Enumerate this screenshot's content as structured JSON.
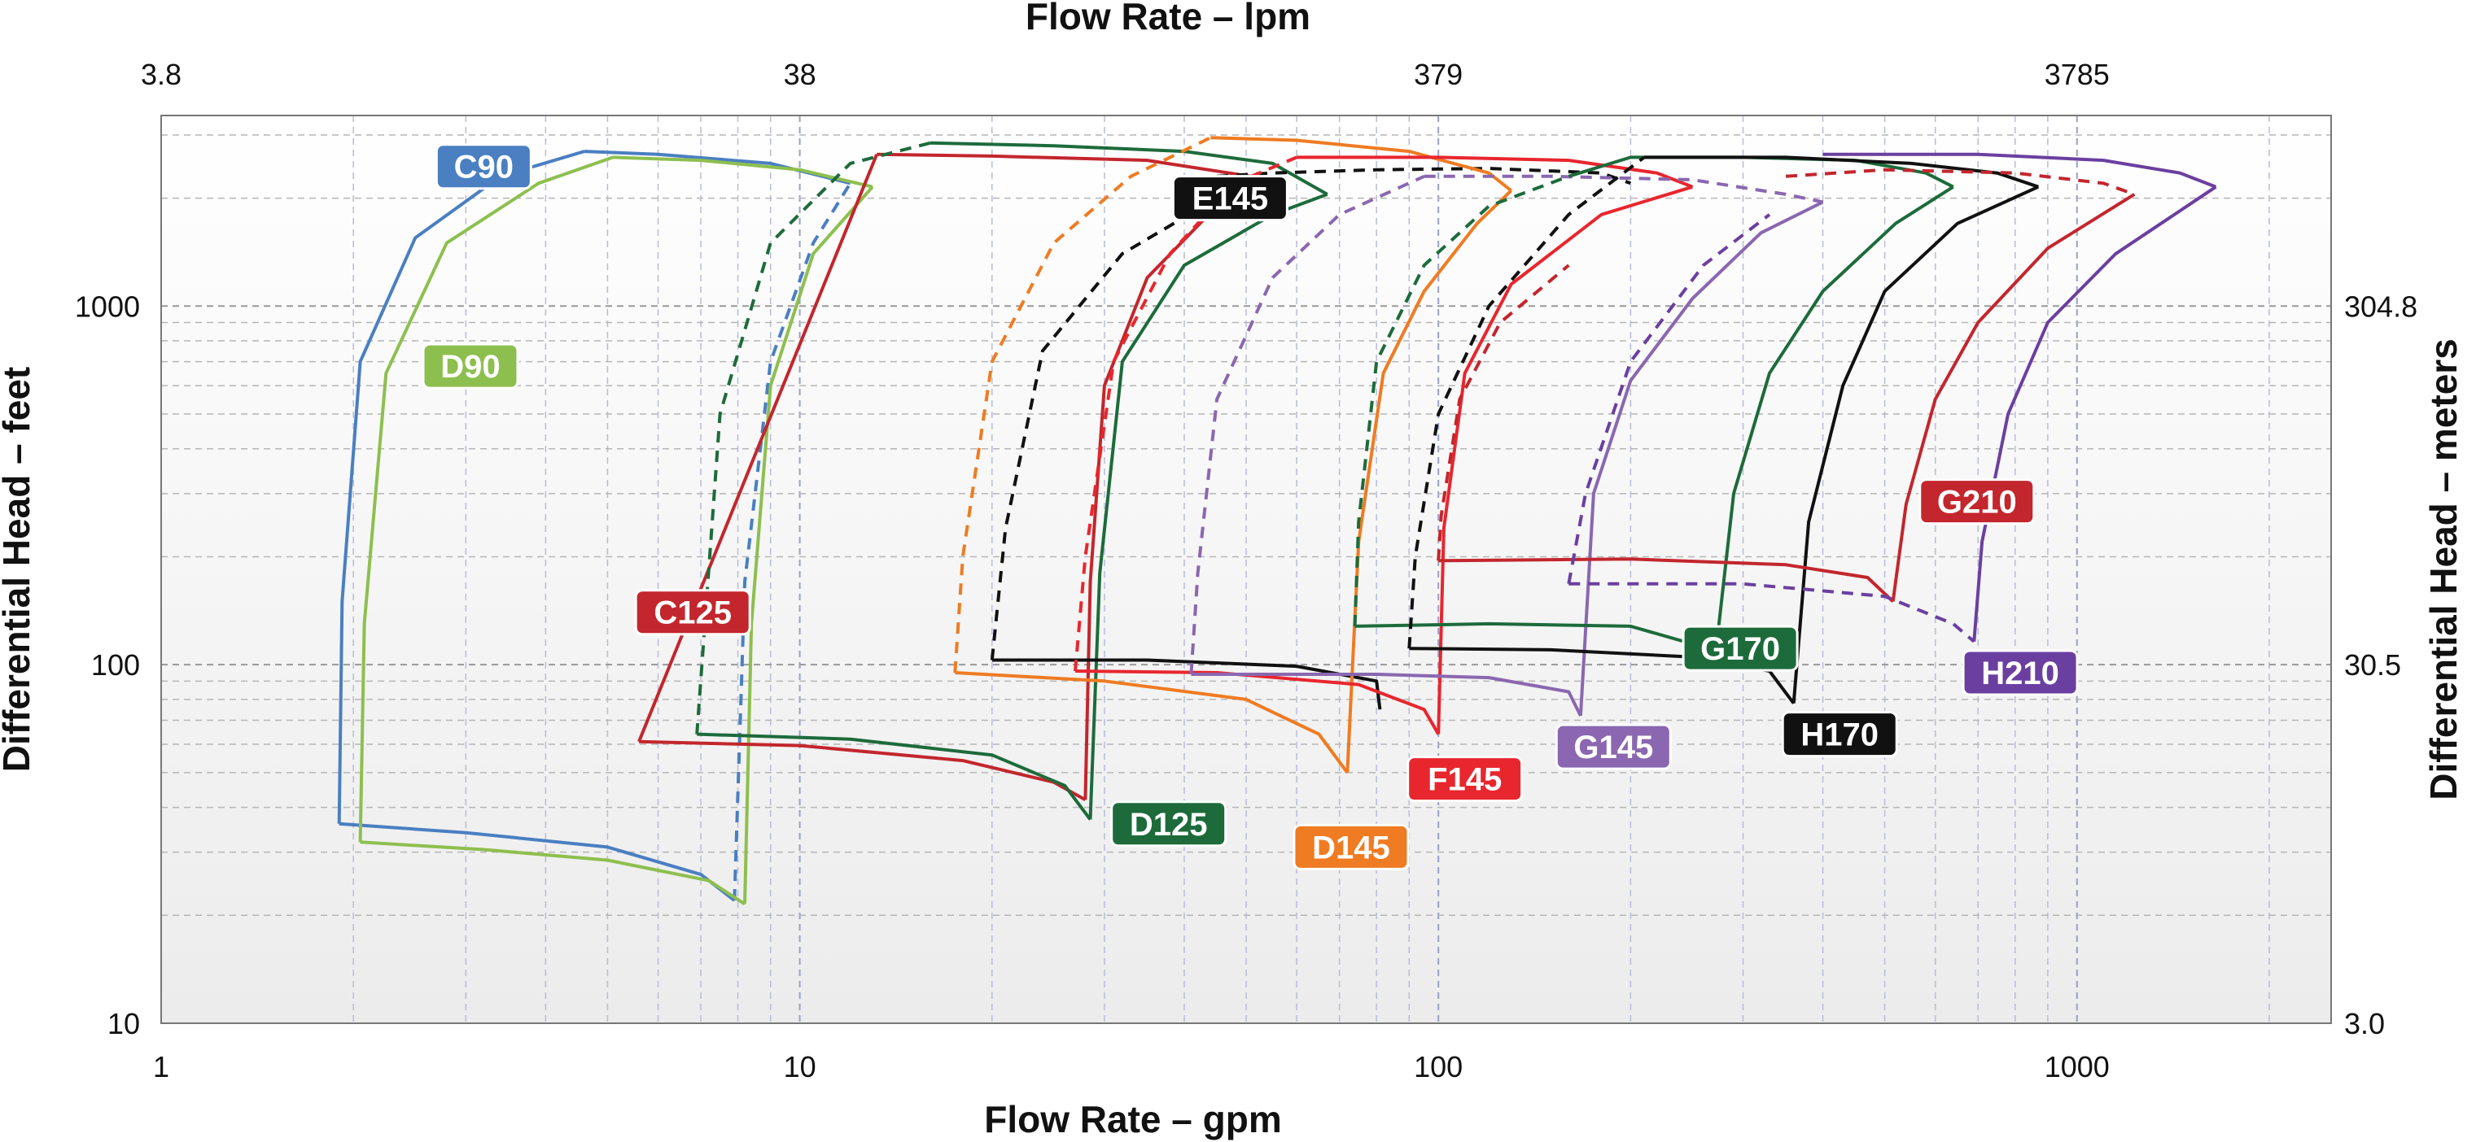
{
  "chart_data": {
    "type": "line",
    "title": "",
    "xlabel": "Flow Rate – gpm",
    "x2label": "Flow Rate – lpm",
    "ylabel": "Differential Head – feet",
    "y2label": "Differential Head – meters",
    "xscale": "log",
    "yscale": "log",
    "xlim": [
      1,
      2500
    ],
    "ylim": [
      10,
      3400
    ],
    "grid": true,
    "x_ticks": [
      "1",
      "10",
      "100",
      "1000"
    ],
    "x2_ticks": [
      {
        "label": "3.8",
        "gpm": 1
      },
      {
        "label": "38",
        "gpm": 10
      },
      {
        "label": "379",
        "gpm": 100
      },
      {
        "label": "3785",
        "gpm": 1000
      }
    ],
    "y_ticks": [
      "10",
      "100",
      "1000"
    ],
    "y2_ticks": [
      {
        "label": "3.0",
        "feet": 10
      },
      {
        "label": "30.5",
        "feet": 100
      },
      {
        "label": "304.8",
        "feet": 1000
      }
    ],
    "series": [
      {
        "name": "C90",
        "color": "#4a7fc1",
        "label_pos": [
          3.2,
          2450
        ],
        "x": [
          4.6,
          3.4,
          2.5,
          2.05,
          1.92,
          1.9
        ],
        "y": [
          2700,
          2300,
          1550,
          700,
          150,
          36
        ],
        "bottom": {
          "x": [
            1.9,
            3.0,
            5.0,
            7.0,
            7.9
          ],
          "y": [
            36,
            34,
            31,
            26,
            22
          ]
        },
        "top": {
          "x": [
            4.6,
            6.0,
            9.0,
            12.0
          ],
          "y": [
            2700,
            2650,
            2500,
            2200
          ]
        },
        "right_dash": {
          "x": [
            7.9,
            8.2,
            9.0,
            10.5,
            12.0
          ],
          "y": [
            22,
            170,
            700,
            1500,
            2200
          ]
        }
      },
      {
        "name": "D90",
        "color": "#8dbf4e",
        "label_pos": [
          3.05,
          680
        ],
        "x": [
          5.1,
          3.9,
          2.8,
          2.25,
          2.08,
          2.05
        ],
        "y": [
          2600,
          2200,
          1500,
          650,
          130,
          32
        ],
        "bottom": {
          "x": [
            2.05,
            3.2,
            5.0,
            7.2,
            8.2
          ],
          "y": [
            32,
            30.5,
            28.5,
            25,
            21.5
          ]
        },
        "top": {
          "x": [
            5.1,
            7.0,
            10.0,
            13.0
          ],
          "y": [
            2600,
            2550,
            2400,
            2150
          ]
        },
        "right": {
          "x": [
            8.2,
            8.4,
            9.0,
            10.5,
            13.0
          ],
          "y": [
            21.5,
            130,
            600,
            1400,
            2150
          ]
        }
      },
      {
        "name": "C125",
        "color": "#c3262d",
        "label_pos": [
          6.8,
          140
        ],
        "x": [
          5.6,
          13.2
        ],
        "y": [
          61,
          2650
        ],
        "bottom": {
          "x": [
            5.6,
            10.0,
            18.0,
            25.0,
            28.0
          ],
          "y": [
            61,
            59.5,
            54,
            47,
            42
          ]
        },
        "top": {
          "x": [
            13.2,
            20.0,
            35.0,
            55.0
          ],
          "y": [
            2650,
            2620,
            2550,
            2250
          ]
        },
        "right": {
          "x": [
            28.0,
            28.5,
            30.0,
            35.0,
            45.0,
            55.0
          ],
          "y": [
            42,
            170,
            600,
            1200,
            1900,
            2250
          ]
        }
      },
      {
        "name": "D125",
        "color": "#1d6b3b",
        "label_pos": [
          37.8,
          36
        ],
        "x": [
          6.9,
          6.9
        ],
        "y": [
          64,
          64
        ],
        "bottom": {
          "x": [
            6.9,
            12.0,
            20.0,
            26.0,
            28.5
          ],
          "y": [
            64,
            62,
            56,
            46,
            37
          ]
        },
        "top_dash": {
          "x": [
            16.0,
            12.0,
            9.0,
            7.5,
            6.9
          ],
          "y": [
            2850,
            2500,
            1500,
            500,
            64
          ]
        },
        "top": {
          "x": [
            16.0,
            25.0,
            40.0,
            55.0,
            67.0
          ],
          "y": [
            2850,
            2800,
            2700,
            2500,
            2050
          ]
        },
        "right": {
          "x": [
            28.5,
            29.5,
            32.0,
            40.0,
            55.0,
            67.0
          ],
          "y": [
            37,
            180,
            700,
            1300,
            1800,
            2050
          ]
        }
      },
      {
        "name": "E145",
        "color": "#111111",
        "label_pos": [
          47.2,
          2000
        ],
        "x": [
          20.0,
          20.0
        ],
        "y": [
          103,
          103
        ],
        "bottom": {
          "x": [
            20.0,
            35.0,
            60.0,
            80.0,
            81.0
          ],
          "y": [
            103,
            103,
            99,
            90,
            75
          ]
        },
        "left_dash": {
          "x": [
            20.0,
            21.0,
            24.0,
            32.0,
            45.0,
            55.0
          ],
          "y": [
            103,
            240,
            750,
            1400,
            2000,
            2300
          ]
        },
        "top_dash": {
          "x": [
            45.0,
            55.0,
            80.0,
            120.0,
            180.0,
            200.0
          ],
          "y": [
            2300,
            2350,
            2400,
            2420,
            2350,
            2200
          ]
        }
      },
      {
        "name": "D145",
        "color": "#ef7b22",
        "label_pos": [
          73.0,
          31
        ],
        "x": [
          17.5,
          17.5
        ],
        "y": [
          95,
          95
        ],
        "bottom": {
          "x": [
            17.5,
            30.0,
            50.0,
            65.0,
            72.0
          ],
          "y": [
            95,
            90,
            80,
            64,
            50
          ]
        },
        "left_dash": {
          "x": [
            17.5,
            18.0,
            20.0,
            25.0,
            33.0,
            44.0
          ],
          "y": [
            95,
            200,
            700,
            1500,
            2300,
            2950
          ]
        },
        "top": {
          "x": [
            44.0,
            60.0,
            90.0,
            120.0,
            130.0
          ],
          "y": [
            2950,
            2900,
            2700,
            2350,
            2100
          ]
        },
        "right": {
          "x": [
            72.0,
            75.0,
            82.0,
            95.0,
            115.0,
            130.0
          ],
          "y": [
            50,
            220,
            650,
            1100,
            1700,
            2100
          ]
        }
      },
      {
        "name": "F145",
        "color": "#e8262e",
        "label_pos": [
          110,
          48
        ],
        "x": [
          27.0,
          27.0
        ],
        "y": [
          96,
          96
        ],
        "bottom": {
          "x": [
            27.0,
            45.0,
            75.0,
            95.0,
            100.0
          ],
          "y": [
            96,
            95,
            88,
            75,
            64
          ]
        },
        "left_dash": {
          "x": [
            27.0,
            28.0,
            31.0,
            38.0,
            48.0,
            60.0
          ],
          "y": [
            96,
            200,
            700,
            1400,
            2200,
            2600
          ]
        },
        "top": {
          "x": [
            60.0,
            100.0,
            160.0,
            220.0,
            250.0
          ],
          "y": [
            2600,
            2600,
            2550,
            2350,
            2150
          ]
        },
        "right": {
          "x": [
            100.0,
            102.0,
            110.0,
            130.0,
            180.0,
            250.0
          ],
          "y": [
            64,
            240,
            650,
            1150,
            1800,
            2150
          ]
        }
      },
      {
        "name": "G145",
        "color": "#8a67b0",
        "label_pos": [
          188,
          59
        ],
        "x": [
          41.0,
          41.0
        ],
        "y": [
          94,
          94
        ],
        "bottom": {
          "x": [
            41.0,
            80.0,
            120.0,
            160.0,
            167.0
          ],
          "y": [
            94,
            94,
            92,
            84,
            72
          ]
        },
        "left_dash": {
          "x": [
            41.0,
            42.0,
            45.0,
            55.0,
            70.0,
            95.0
          ],
          "y": [
            94,
            180,
            550,
            1200,
            1800,
            2300
          ]
        },
        "top_dash": {
          "x": [
            95.0,
            150.0,
            250.0,
            350.0,
            400.0
          ],
          "y": [
            2300,
            2300,
            2250,
            2050,
            1950
          ]
        },
        "right": {
          "x": [
            167.0,
            175.0,
            200.0,
            250.0,
            320.0,
            400.0
          ],
          "y": [
            72,
            300,
            620,
            1050,
            1600,
            1950
          ]
        }
      },
      {
        "name": "G170",
        "color": "#1d6b3b",
        "label_pos": [
          297,
          111
        ],
        "x": [
          74.0,
          74.0
        ],
        "y": [
          128,
          128
        ],
        "bottom": {
          "x": [
            74.0,
            120.0,
            200.0,
            260.0,
            270.0
          ],
          "y": [
            128,
            130,
            128,
            112,
            97
          ]
        },
        "left_dash": {
          "x": [
            74.0,
            75.0,
            80.0,
            95.0,
            120.0,
            160.0
          ],
          "y": [
            128,
            250,
            700,
            1300,
            1900,
            2300
          ]
        },
        "top": {
          "x": [
            160.0,
            200.0,
            300.0,
            450.0,
            580.0,
            640.0
          ],
          "y": [
            2300,
            2600,
            2600,
            2550,
            2350,
            2150
          ]
        },
        "right": {
          "x": [
            270.0,
            290.0,
            330.0,
            400.0,
            520.0,
            640.0
          ],
          "y": [
            97,
            300,
            650,
            1100,
            1700,
            2150
          ]
        }
      },
      {
        "name": "H170",
        "color": "#111111",
        "label_pos": [
          425,
          64
        ],
        "x": [
          90.0,
          90.0
        ],
        "y": [
          111,
          111
        ],
        "bottom": {
          "x": [
            90.0,
            150.0,
            250.0,
            330.0,
            360.0
          ],
          "y": [
            111,
            110,
            105,
            96,
            78
          ]
        },
        "left_dash": {
          "x": [
            90.0,
            92.0,
            100.0,
            120.0,
            160.0,
            210.0
          ],
          "y": [
            111,
            200,
            500,
            1000,
            1800,
            2600
          ]
        },
        "top": {
          "x": [
            210.0,
            350.0,
            550.0,
            750.0,
            870.0
          ],
          "y": [
            2600,
            2600,
            2500,
            2350,
            2150
          ]
        },
        "right": {
          "x": [
            360.0,
            380.0,
            430.0,
            500.0,
            650.0,
            870.0
          ],
          "y": [
            78,
            250,
            600,
            1100,
            1700,
            2150
          ]
        }
      },
      {
        "name": "G210",
        "color": "#c3262d",
        "label_pos": [
          697,
          285
        ],
        "x": [
          100.0,
          100.0
        ],
        "y": [
          195,
          195
        ],
        "bottom": {
          "x": [
            100.0,
            200.0,
            350.0,
            470.0,
            515.0
          ],
          "y": [
            195,
            197,
            190,
            175,
            150
          ]
        },
        "left_dash": {
          "x": [
            100.0,
            101.0,
            108.0,
            125.0,
            160.0
          ],
          "y": [
            195,
            260,
            550,
            900,
            1300
          ]
        },
        "top_dash": {
          "x": [
            350.0,
            500.0,
            800.0,
            1100.0,
            1230.0
          ],
          "y": [
            2300,
            2400,
            2350,
            2200,
            2050
          ]
        },
        "right": {
          "x": [
            515.0,
            540.0,
            600.0,
            700.0,
            900.0,
            1230.0
          ],
          "y": [
            150,
            280,
            550,
            900,
            1450,
            2050
          ]
        }
      },
      {
        "name": "H210",
        "color": "#6b3fa0",
        "label_pos": [
          815,
          95
        ],
        "x": [
          160.0,
          160.0
        ],
        "y": [
          168,
          168
        ],
        "bottom_dash": {
          "x": [
            160.0,
            300.0,
            500.0,
            640.0,
            690.0
          ],
          "y": [
            168,
            168,
            155,
            130,
            116
          ]
        },
        "left_dash": {
          "x": [
            160.0,
            170.0,
            200.0,
            260.0,
            330.0
          ],
          "y": [
            168,
            300,
            700,
            1300,
            1800
          ]
        },
        "top": {
          "x": [
            400.0,
            700.0,
            1100.0,
            1450.0,
            1650.0
          ],
          "y": [
            2650,
            2650,
            2550,
            2350,
            2150
          ]
        },
        "right": {
          "x": [
            690.0,
            710.0,
            780.0,
            900.0,
            1150.0,
            1650.0
          ],
          "y": [
            116,
            220,
            500,
            900,
            1400,
            2150
          ]
        }
      }
    ]
  }
}
